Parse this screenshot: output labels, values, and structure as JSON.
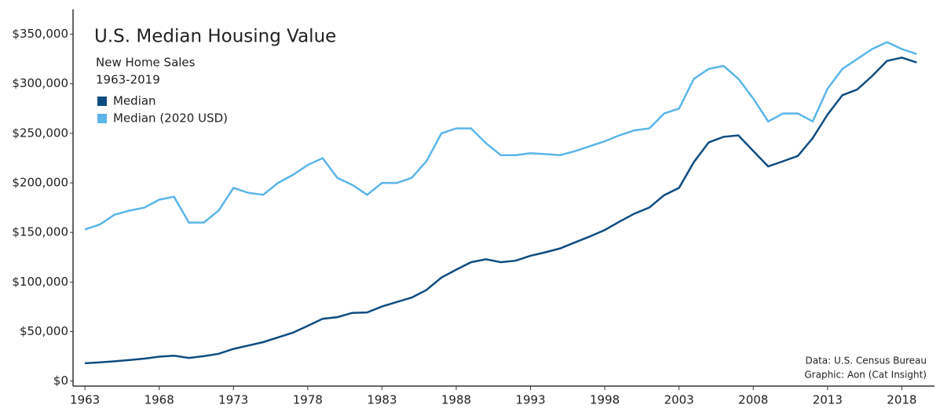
{
  "chart_data": {
    "type": "line",
    "title": "U.S. Median Housing Value",
    "subtitle": [
      "New Home Sales",
      "1963-2019"
    ],
    "annotations": [
      "Data: U.S. Census Bureau",
      "Graphic: Aon (Cat Insight)"
    ],
    "x": [
      1963,
      1964,
      1965,
      1966,
      1967,
      1968,
      1969,
      1970,
      1971,
      1972,
      1973,
      1974,
      1975,
      1976,
      1977,
      1978,
      1979,
      1980,
      1981,
      1982,
      1983,
      1984,
      1985,
      1986,
      1987,
      1988,
      1989,
      1990,
      1991,
      1992,
      1993,
      1994,
      1995,
      1996,
      1997,
      1998,
      1999,
      2000,
      2001,
      2002,
      2003,
      2004,
      2005,
      2006,
      2007,
      2008,
      2009,
      2010,
      2011,
      2012,
      2013,
      2014,
      2015,
      2016,
      2017,
      2018,
      2019
    ],
    "series": [
      {
        "name": "Median",
        "color": "#0f4c81",
        "values": [
          18000,
          18900,
          20000,
          21400,
          22700,
          24700,
          25600,
          23400,
          25200,
          27600,
          32500,
          35900,
          39300,
          44200,
          48800,
          55700,
          62900,
          64600,
          68900,
          69300,
          75300,
          79900,
          84300,
          92000,
          104500,
          112500,
          120000,
          122900,
          120000,
          121500,
          126500,
          130000,
          133900,
          140000,
          146000,
          152500,
          161000,
          169000,
          175200,
          187600,
          195000,
          221000,
          240900,
          246500,
          247900,
          232100,
          216700,
          221800,
          227200,
          245200,
          268900,
          288500,
          294200,
          307800,
          323100,
          326400,
          321500
        ]
      },
      {
        "name": "Median (2020 USD)",
        "color": "#5bb5e8",
        "values": [
          153000,
          158000,
          168000,
          172000,
          175000,
          183000,
          186000,
          160000,
          160000,
          172000,
          195000,
          190000,
          188000,
          200000,
          208000,
          218000,
          225000,
          205000,
          198000,
          188000,
          200000,
          200000,
          205000,
          222000,
          250000,
          255000,
          255000,
          240000,
          228000,
          228000,
          230000,
          229000,
          228000,
          232000,
          237000,
          242000,
          248000,
          253000,
          255000,
          270000,
          275000,
          305000,
          315000,
          318000,
          305000,
          285000,
          262000,
          270000,
          270000,
          262000,
          295000,
          315000,
          325000,
          335000,
          342000,
          335000,
          330000
        ]
      }
    ],
    "xlim": [
      1962.2,
      2020.2
    ],
    "xticks": [
      1963,
      1968,
      1973,
      1978,
      1983,
      1988,
      1993,
      1998,
      2003,
      2008,
      2013,
      2018
    ],
    "ylim": [
      -5000,
      375000
    ],
    "yticks": [
      {
        "value": 0,
        "label": "$0"
      },
      {
        "value": 50000,
        "label": "$50,000"
      },
      {
        "value": 100000,
        "label": "$100,000"
      },
      {
        "value": 150000,
        "label": "$150,000"
      },
      {
        "value": 200000,
        "label": "$200,000"
      },
      {
        "value": 250000,
        "label": "$250,000"
      },
      {
        "value": 300000,
        "label": "$300,000"
      },
      {
        "value": 350000,
        "label": "$350,000"
      }
    ],
    "legend": "upper left"
  }
}
